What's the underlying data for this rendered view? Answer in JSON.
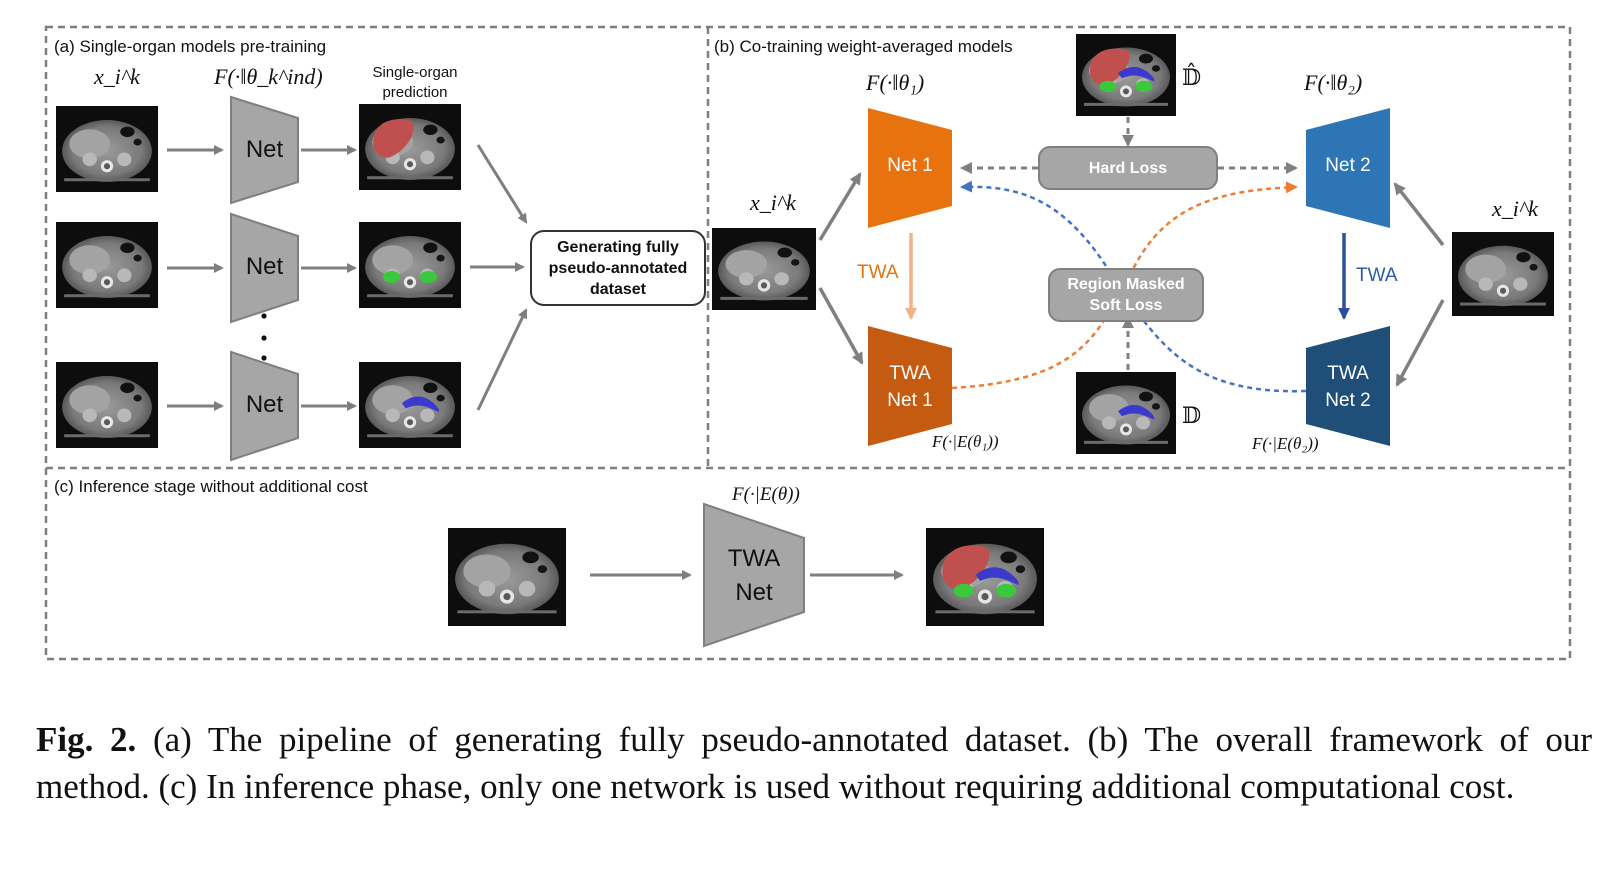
{
  "panel_a": {
    "title": "(a) Single-organ models pre-training",
    "input_label": "x_i^k",
    "model_label": "F(·‖θ_k^ind)",
    "prediction_label": "Single-organ\nprediction",
    "net_label": "Net",
    "generate_box": "Generating fully\npseudo-annotated\ndataset"
  },
  "panel_b": {
    "title": "(b)  Co-training weight-averaged models",
    "input_label_left": "x_i^k",
    "input_label_right": "x_i^k",
    "model1_label": "F(·‖θ₁)",
    "model2_label": "F(·‖θ₂)",
    "net1": "Net 1",
    "net2": "Net 2",
    "twa_net1": "TWA\nNet 1",
    "twa_net2": "TWA\nNet 2",
    "twa_edge_left": "TWA",
    "twa_edge_right": "TWA",
    "twa1_func": "F(·|E(θ₁))",
    "twa2_func": "F(·|E(θ₂))",
    "hard_loss": "Hard Loss",
    "soft_loss": "Region Masked\nSoft Loss",
    "dataset_hat": "𝔻̂",
    "dataset": "𝔻"
  },
  "panel_c": {
    "title": "(c) Inference stage without  additional cost",
    "func_label": "F(·|E(θ))",
    "net_label": "TWA\nNet"
  },
  "colors": {
    "net_gray": "#a6a6a6",
    "net1_orange": "#e8720e",
    "twa_net1_orange": "#c55a11",
    "net2_blue": "#2e75b6",
    "twa_net2_blue": "#1f4e79",
    "twa_arrow_orange": "#f4b183",
    "liver_red": "#c0504d",
    "kidney_green": "#3cc83c",
    "pancreas_blue": "#3a3acc"
  },
  "caption": {
    "label": "Fig. 2.",
    "text": "(a) The pipeline of generating fully pseudo-annotated dataset. (b) The overall framework of our method. (c) In inference phase, only one network is used without requiring additional computational cost."
  }
}
